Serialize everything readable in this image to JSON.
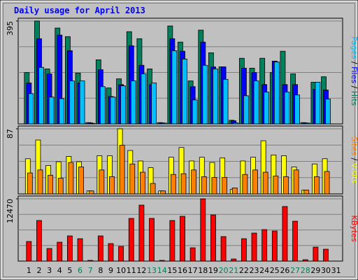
{
  "chart_data": {
    "type": "bar",
    "title": "Daily usage for April 2013",
    "categories": [
      "1",
      "2",
      "3",
      "4",
      "5",
      "6",
      "7",
      "8",
      "9",
      "10",
      "11",
      "12",
      "13",
      "14",
      "15",
      "16",
      "17",
      "18",
      "19",
      "20",
      "21",
      "22",
      "23",
      "24",
      "25",
      "26",
      "27",
      "28",
      "29",
      "30",
      "31"
    ],
    "label_color": "#000000",
    "highlight_color": "#00805c",
    "highlighted": [
      5,
      6,
      12,
      13,
      19,
      20,
      26,
      27
    ],
    "grid_divisions": 4,
    "panels": [
      {
        "type": "bar",
        "ylim": [
          0,
          395
        ],
        "yticks": [
          395
        ],
        "series": [
          {
            "name": "Hits",
            "color": "#00805c",
            "values": [
              197,
              395,
              211,
              368,
              335,
              195,
              5,
              246,
              138,
              173,
              354,
              327,
              211,
              5,
              376,
              314,
              165,
              360,
              273,
              219,
              14,
              252,
              214,
              252,
              197,
              279,
              192,
              5,
              160,
              181,
              0
            ]
          },
          {
            "name": "Files",
            "color": "#0000ff",
            "values": [
              157,
              327,
              192,
              341,
              281,
              157,
              4,
              208,
              105,
              151,
              300,
              225,
              151,
              4,
              327,
              279,
              143,
              314,
              219,
              219,
              12,
              214,
              197,
              151,
              241,
              151,
              151,
              4,
              133,
              130,
              0
            ]
          },
          {
            "name": "Pages",
            "color": "#00c0ff",
            "values": [
              116,
              217,
              103,
              97,
              165,
              165,
              2,
              143,
              103,
              146,
              165,
              192,
              157,
              3,
              281,
              249,
              92,
              225,
              211,
              171,
              4,
              108,
              165,
              122,
              238,
              122,
              111,
              3,
              160,
              95,
              0
            ]
          }
        ]
      },
      {
        "type": "bar",
        "ylim": [
          0,
          87
        ],
        "yticks": [
          87
        ],
        "series": [
          {
            "name": "Visits",
            "color": "#ffff00",
            "values": [
              47,
              72,
              38,
              43,
              50,
              43,
              4,
              51,
              51,
              87,
              58,
              44,
              35,
              4,
              49,
              62,
              44,
              49,
              42,
              48,
              6,
              44,
              49,
              71,
              52,
              51,
              36,
              5,
              40,
              47,
              0
            ]
          },
          {
            "name": "Sites",
            "color": "#ff8000",
            "values": [
              28,
              32,
              25,
              21,
              42,
              36,
              4,
              32,
              23,
              65,
              40,
              29,
              14,
              4,
              26,
              27,
              32,
              23,
              22,
              22,
              8,
              26,
              32,
              29,
              24,
              23,
              32,
              5,
              23,
              30,
              0
            ]
          }
        ]
      },
      {
        "type": "bar",
        "ylim": [
          0,
          12470
        ],
        "yticks": [
          12470
        ],
        "series": [
          {
            "name": "KBytes",
            "color": "#ff0000",
            "values": [
              3923,
              8126,
              2522,
              3783,
              5044,
              4483,
              140,
              5044,
              3503,
              2942,
              8546,
              11208,
              8546,
              140,
              8126,
              8967,
              2662,
              12470,
              9247,
              4904,
              420,
              4483,
              5604,
              6305,
              6024,
              10928,
              7986,
              280,
              2802,
              2382,
              0
            ]
          }
        ]
      }
    ]
  }
}
